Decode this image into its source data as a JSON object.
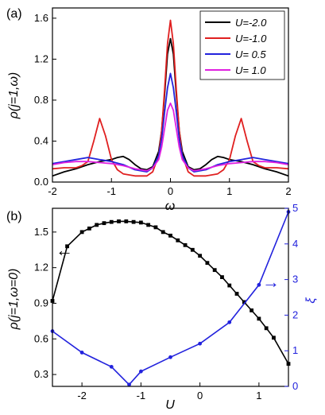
{
  "chart_data": [
    {
      "panel_label": "(a)",
      "type": "line",
      "xlabel": "ω",
      "ylabel": "ρ(j=1,ω)",
      "xlim": [
        -2,
        2
      ],
      "ylim": [
        0,
        1.7
      ],
      "xticks": [
        "-2",
        "-1",
        "0",
        "1",
        "2"
      ],
      "yticks": [
        "0.0",
        "0.4",
        "0.8",
        "1.2",
        "1.6"
      ],
      "legend_position": "top-right",
      "series": [
        {
          "name": "U=-2.0",
          "color": "#000000",
          "x": [
            -2.0,
            -1.8,
            -1.6,
            -1.4,
            -1.2,
            -1.0,
            -0.9,
            -0.8,
            -0.7,
            -0.6,
            -0.5,
            -0.4,
            -0.3,
            -0.2,
            -0.15,
            -0.1,
            -0.05,
            0.0,
            0.05,
            0.1,
            0.15,
            0.2,
            0.3,
            0.4,
            0.5,
            0.6,
            0.7,
            0.8,
            0.9,
            1.0,
            1.2,
            1.4,
            1.6,
            1.8,
            2.0
          ],
          "y": [
            0.06,
            0.1,
            0.13,
            0.17,
            0.2,
            0.22,
            0.24,
            0.25,
            0.22,
            0.17,
            0.13,
            0.12,
            0.15,
            0.3,
            0.5,
            0.85,
            1.25,
            1.4,
            1.25,
            0.85,
            0.5,
            0.3,
            0.15,
            0.12,
            0.13,
            0.17,
            0.22,
            0.25,
            0.24,
            0.22,
            0.2,
            0.17,
            0.13,
            0.1,
            0.06
          ]
        },
        {
          "name": "U=-1.0",
          "color": "#e02020",
          "x": [
            -2.0,
            -1.8,
            -1.6,
            -1.5,
            -1.4,
            -1.3,
            -1.2,
            -1.1,
            -1.0,
            -0.9,
            -0.8,
            -0.6,
            -0.4,
            -0.3,
            -0.2,
            -0.15,
            -0.1,
            -0.05,
            0.0,
            0.05,
            0.1,
            0.15,
            0.2,
            0.3,
            0.4,
            0.6,
            0.8,
            0.9,
            1.0,
            1.1,
            1.2,
            1.3,
            1.4,
            1.5,
            1.6,
            1.8,
            2.0
          ],
          "y": [
            0.13,
            0.14,
            0.14,
            0.16,
            0.2,
            0.4,
            0.62,
            0.45,
            0.22,
            0.12,
            0.08,
            0.06,
            0.06,
            0.1,
            0.26,
            0.5,
            0.9,
            1.35,
            1.58,
            1.35,
            0.9,
            0.5,
            0.26,
            0.1,
            0.06,
            0.06,
            0.08,
            0.12,
            0.22,
            0.45,
            0.62,
            0.4,
            0.2,
            0.16,
            0.14,
            0.14,
            0.13
          ]
        },
        {
          "name": "U= 0.5",
          "color": "#2222dd",
          "x": [
            -2.0,
            -1.8,
            -1.6,
            -1.4,
            -1.2,
            -1.0,
            -0.8,
            -0.6,
            -0.4,
            -0.3,
            -0.2,
            -0.15,
            -0.1,
            -0.05,
            0.0,
            0.05,
            0.1,
            0.15,
            0.2,
            0.3,
            0.4,
            0.6,
            0.8,
            1.0,
            1.2,
            1.4,
            1.6,
            1.8,
            2.0
          ],
          "y": [
            0.18,
            0.2,
            0.22,
            0.24,
            0.22,
            0.2,
            0.17,
            0.12,
            0.1,
            0.14,
            0.26,
            0.42,
            0.68,
            0.92,
            1.06,
            0.92,
            0.68,
            0.42,
            0.26,
            0.14,
            0.1,
            0.12,
            0.17,
            0.2,
            0.22,
            0.24,
            0.22,
            0.2,
            0.18
          ]
        },
        {
          "name": "U= 1.0",
          "color": "#e020e0",
          "x": [
            -2.0,
            -1.8,
            -1.6,
            -1.4,
            -1.2,
            -1.0,
            -0.8,
            -0.6,
            -0.4,
            -0.3,
            -0.2,
            -0.15,
            -0.1,
            -0.05,
            0.0,
            0.05,
            0.1,
            0.15,
            0.2,
            0.3,
            0.4,
            0.6,
            0.8,
            1.0,
            1.2,
            1.4,
            1.6,
            1.8,
            2.0
          ],
          "y": [
            0.17,
            0.19,
            0.2,
            0.2,
            0.19,
            0.18,
            0.16,
            0.13,
            0.11,
            0.14,
            0.22,
            0.34,
            0.52,
            0.7,
            0.77,
            0.7,
            0.52,
            0.34,
            0.22,
            0.14,
            0.11,
            0.13,
            0.16,
            0.18,
            0.19,
            0.2,
            0.2,
            0.19,
            0.17
          ]
        }
      ]
    },
    {
      "panel_label": "(b)",
      "type": "line",
      "xlabel": "U",
      "ylabel": "ρ(j=1,ω=0)",
      "y2label": "ξ",
      "xlim": [
        -2.5,
        1.5
      ],
      "ylim": [
        0.2,
        1.7
      ],
      "y2lim": [
        0,
        5
      ],
      "xticks": [
        "-2",
        "-1",
        "0",
        "1"
      ],
      "yticks": [
        "0.3",
        "0.6",
        "0.9",
        "1.2",
        "1.5"
      ],
      "y2ticks": [
        "0",
        "1",
        "2",
        "3",
        "4",
        "5"
      ],
      "series": [
        {
          "name": "ρ(j=1,ω=0)",
          "axis": "left",
          "color": "#000000",
          "x": [
            -2.5,
            -2.25,
            -2.0,
            -1.875,
            -1.75,
            -1.625,
            -1.5,
            -1.375,
            -1.25,
            -1.125,
            -1.0,
            -0.875,
            -0.75,
            -0.625,
            -0.5,
            -0.375,
            -0.25,
            -0.125,
            0.0,
            0.125,
            0.25,
            0.375,
            0.5,
            0.625,
            0.75,
            0.875,
            1.0,
            1.125,
            1.25,
            1.5
          ],
          "y": [
            0.92,
            1.38,
            1.5,
            1.53,
            1.56,
            1.575,
            1.585,
            1.59,
            1.59,
            1.585,
            1.58,
            1.56,
            1.54,
            1.5,
            1.47,
            1.43,
            1.39,
            1.35,
            1.3,
            1.24,
            1.18,
            1.12,
            1.05,
            0.98,
            0.91,
            0.84,
            0.77,
            0.69,
            0.61,
            0.39
          ]
        },
        {
          "name": "ξ",
          "axis": "right",
          "color": "#2222dd",
          "x": [
            -2.5,
            -2.0,
            -1.5,
            -1.2,
            -1.0,
            -0.5,
            0.0,
            0.5,
            1.0,
            1.5
          ],
          "y": [
            1.55,
            0.95,
            0.55,
            0.05,
            0.42,
            0.82,
            1.2,
            1.8,
            2.85,
            4.9
          ]
        }
      ],
      "annotations": [
        "←",
        "→"
      ]
    }
  ]
}
